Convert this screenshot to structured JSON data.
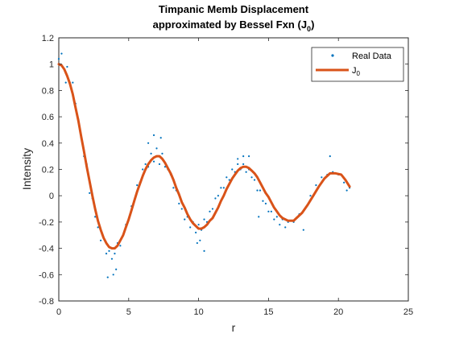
{
  "colors": {
    "background": "#ffffff",
    "scatter": "#0072BD",
    "line": "#D95319",
    "axis": "#262626"
  },
  "chart_data": {
    "type": "scatter",
    "title_line1": "Timpanic Memb Displacement",
    "title_line2_prefix": "approximated by Bessel Fxn (J",
    "title_line2_sub": "0",
    "title_line2_suffix": ")",
    "xlabel": "r",
    "ylabel": "Intensity",
    "xlim": [
      0,
      25
    ],
    "ylim": [
      -0.8,
      1.2
    ],
    "xticks": [
      0,
      5,
      10,
      15,
      20,
      25
    ],
    "yticks": [
      -0.8,
      -0.6,
      -0.4,
      -0.2,
      0,
      0.2,
      0.4,
      0.6,
      0.8,
      1,
      1.2
    ],
    "grid": false,
    "legend_position": "top-right",
    "legend": [
      {
        "label": "Real Data",
        "kind": "marker"
      },
      {
        "label": "J",
        "sub": "0",
        "kind": "line"
      }
    ],
    "series": [
      {
        "name": "Real Data",
        "type": "scatter",
        "points": [
          [
            0.0,
            1.04
          ],
          [
            0.2,
            1.08
          ],
          [
            0.4,
            0.96
          ],
          [
            0.6,
            0.98
          ],
          [
            0.8,
            0.86
          ],
          [
            1.0,
            0.86
          ],
          [
            1.2,
            0.7
          ],
          [
            1.4,
            0.58
          ],
          [
            1.6,
            0.44
          ],
          [
            1.8,
            0.3
          ],
          [
            2.0,
            0.24
          ],
          [
            2.2,
            0.02
          ],
          [
            2.4,
            -0.02
          ],
          [
            2.6,
            -0.16
          ],
          [
            2.8,
            -0.24
          ],
          [
            3.0,
            -0.34
          ],
          [
            3.2,
            -0.32
          ],
          [
            3.4,
            -0.44
          ],
          [
            3.6,
            -0.42
          ],
          [
            3.8,
            -0.48
          ],
          [
            4.0,
            -0.44
          ],
          [
            4.2,
            -0.36
          ],
          [
            4.4,
            -0.38
          ],
          [
            4.6,
            -0.3
          ],
          [
            4.8,
            -0.22
          ],
          [
            5.0,
            -0.18
          ],
          [
            5.2,
            -0.08
          ],
          [
            5.4,
            -0.04
          ],
          [
            5.6,
            0.08
          ],
          [
            5.8,
            0.1
          ],
          [
            6.0,
            0.2
          ],
          [
            6.2,
            0.24
          ],
          [
            6.4,
            0.22
          ],
          [
            6.6,
            0.32
          ],
          [
            6.8,
            0.26
          ],
          [
            7.0,
            0.36
          ],
          [
            7.2,
            0.24
          ],
          [
            7.4,
            0.32
          ],
          [
            7.6,
            0.22
          ],
          [
            7.8,
            0.2
          ],
          [
            8.0,
            0.16
          ],
          [
            8.2,
            0.06
          ],
          [
            8.4,
            0.04
          ],
          [
            8.6,
            -0.06
          ],
          [
            8.8,
            -0.1
          ],
          [
            9.0,
            -0.18
          ],
          [
            9.2,
            -0.16
          ],
          [
            9.4,
            -0.24
          ],
          [
            9.6,
            -0.2
          ],
          [
            9.8,
            -0.28
          ],
          [
            10.0,
            -0.22
          ],
          [
            10.2,
            -0.26
          ],
          [
            10.4,
            -0.18
          ],
          [
            10.6,
            -0.2
          ],
          [
            10.8,
            -0.12
          ],
          [
            11.0,
            -0.1
          ],
          [
            11.2,
            -0.02
          ],
          [
            11.4,
            0.0
          ],
          [
            11.6,
            0.06
          ],
          [
            11.8,
            0.06
          ],
          [
            12.0,
            0.14
          ],
          [
            12.2,
            0.12
          ],
          [
            12.4,
            0.2
          ],
          [
            12.6,
            0.18
          ],
          [
            12.8,
            0.24
          ],
          [
            13.0,
            0.2
          ],
          [
            13.2,
            0.24
          ],
          [
            13.4,
            0.18
          ],
          [
            13.6,
            0.2
          ],
          [
            13.8,
            0.14
          ],
          [
            14.0,
            0.12
          ],
          [
            14.2,
            0.04
          ],
          [
            14.4,
            0.04
          ],
          [
            14.6,
            -0.04
          ],
          [
            14.8,
            -0.06
          ],
          [
            15.0,
            -0.12
          ],
          [
            15.2,
            -0.12
          ],
          [
            15.4,
            -0.18
          ],
          [
            15.6,
            -0.16
          ],
          [
            15.8,
            -0.22
          ],
          [
            16.0,
            -0.18
          ],
          [
            16.4,
            -0.2
          ],
          [
            16.8,
            -0.2
          ],
          [
            17.2,
            -0.14
          ],
          [
            17.6,
            -0.1
          ],
          [
            18.0,
            0.0
          ],
          [
            18.4,
            0.08
          ],
          [
            18.8,
            0.14
          ],
          [
            19.2,
            0.16
          ],
          [
            19.4,
            0.3
          ],
          [
            19.6,
            0.18
          ],
          [
            20.0,
            0.16
          ],
          [
            20.4,
            0.1
          ],
          [
            20.6,
            0.04
          ],
          [
            20.8,
            0.06
          ],
          [
            1.0,
            0.78
          ],
          [
            0.5,
            0.86
          ],
          [
            3.9,
            -0.6
          ],
          [
            3.5,
            -0.62
          ],
          [
            4.1,
            -0.56
          ],
          [
            6.8,
            0.46
          ],
          [
            7.3,
            0.44
          ],
          [
            6.4,
            0.4
          ],
          [
            9.9,
            -0.36
          ],
          [
            10.4,
            -0.42
          ],
          [
            10.1,
            -0.34
          ],
          [
            13.2,
            0.3
          ],
          [
            13.6,
            0.3
          ],
          [
            12.8,
            0.28
          ],
          [
            16.2,
            -0.24
          ],
          [
            17.5,
            -0.26
          ],
          [
            14.3,
            -0.16
          ]
        ]
      },
      {
        "name": "J",
        "name_sub": "0",
        "type": "line",
        "points": [
          [
            0.0,
            1.0
          ],
          [
            0.2,
            0.99
          ],
          [
            0.4,
            0.96
          ],
          [
            0.6,
            0.91
          ],
          [
            0.8,
            0.85
          ],
          [
            1.0,
            0.77
          ],
          [
            1.2,
            0.67
          ],
          [
            1.4,
            0.57
          ],
          [
            1.6,
            0.45
          ],
          [
            1.8,
            0.34
          ],
          [
            2.0,
            0.22
          ],
          [
            2.2,
            0.11
          ],
          [
            2.4,
            0.0
          ],
          [
            2.6,
            -0.1
          ],
          [
            2.8,
            -0.19
          ],
          [
            3.0,
            -0.26
          ],
          [
            3.2,
            -0.32
          ],
          [
            3.4,
            -0.36
          ],
          [
            3.6,
            -0.39
          ],
          [
            3.8,
            -0.4
          ],
          [
            4.0,
            -0.4
          ],
          [
            4.2,
            -0.38
          ],
          [
            4.4,
            -0.34
          ],
          [
            4.6,
            -0.3
          ],
          [
            4.8,
            -0.24
          ],
          [
            5.0,
            -0.18
          ],
          [
            5.2,
            -0.11
          ],
          [
            5.4,
            -0.04
          ],
          [
            5.6,
            0.03
          ],
          [
            5.8,
            0.09
          ],
          [
            6.0,
            0.15
          ],
          [
            6.2,
            0.2
          ],
          [
            6.4,
            0.24
          ],
          [
            6.6,
            0.27
          ],
          [
            6.8,
            0.29
          ],
          [
            7.0,
            0.3
          ],
          [
            7.2,
            0.3
          ],
          [
            7.4,
            0.28
          ],
          [
            7.6,
            0.25
          ],
          [
            7.8,
            0.21
          ],
          [
            8.0,
            0.17
          ],
          [
            8.2,
            0.12
          ],
          [
            8.4,
            0.06
          ],
          [
            8.6,
            0.01
          ],
          [
            8.8,
            -0.05
          ],
          [
            9.0,
            -0.09
          ],
          [
            9.2,
            -0.14
          ],
          [
            9.4,
            -0.18
          ],
          [
            9.6,
            -0.21
          ],
          [
            9.8,
            -0.23
          ],
          [
            10.0,
            -0.25
          ],
          [
            10.2,
            -0.25
          ],
          [
            10.4,
            -0.24
          ],
          [
            10.6,
            -0.22
          ],
          [
            10.8,
            -0.19
          ],
          [
            11.0,
            -0.17
          ],
          [
            11.2,
            -0.13
          ],
          [
            11.4,
            -0.09
          ],
          [
            11.6,
            -0.04
          ],
          [
            11.8,
            0.0
          ],
          [
            12.0,
            0.05
          ],
          [
            12.2,
            0.09
          ],
          [
            12.4,
            0.13
          ],
          [
            12.6,
            0.16
          ],
          [
            12.8,
            0.19
          ],
          [
            13.0,
            0.21
          ],
          [
            13.2,
            0.22
          ],
          [
            13.4,
            0.22
          ],
          [
            13.6,
            0.21
          ],
          [
            13.8,
            0.19
          ],
          [
            14.0,
            0.17
          ],
          [
            14.2,
            0.14
          ],
          [
            14.4,
            0.1
          ],
          [
            14.6,
            0.06
          ],
          [
            14.8,
            0.02
          ],
          [
            15.0,
            -0.01
          ],
          [
            15.2,
            -0.05
          ],
          [
            15.4,
            -0.09
          ],
          [
            15.6,
            -0.12
          ],
          [
            15.8,
            -0.15
          ],
          [
            16.0,
            -0.17
          ],
          [
            16.2,
            -0.18
          ],
          [
            16.4,
            -0.19
          ],
          [
            16.6,
            -0.19
          ],
          [
            16.8,
            -0.19
          ],
          [
            17.0,
            -0.17
          ],
          [
            17.4,
            -0.13
          ],
          [
            17.8,
            -0.07
          ],
          [
            18.2,
            0.0
          ],
          [
            18.6,
            0.07
          ],
          [
            19.0,
            0.13
          ],
          [
            19.4,
            0.17
          ],
          [
            19.8,
            0.17
          ],
          [
            20.2,
            0.16
          ],
          [
            20.5,
            0.12
          ],
          [
            20.8,
            0.07
          ]
        ]
      }
    ]
  }
}
